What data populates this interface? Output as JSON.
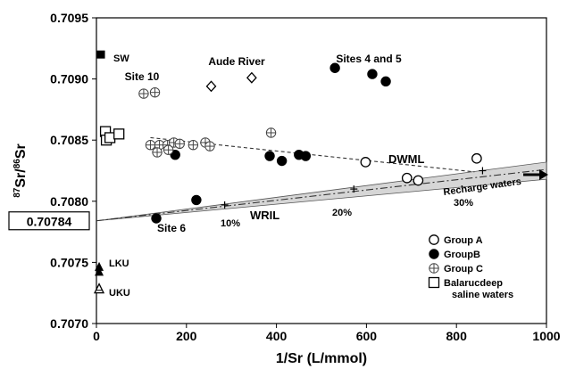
{
  "chart_data": {
    "type": "scatter",
    "xlabel": "1/Sr (L/mmol)",
    "ylabel_sup1": "87",
    "ylabel_mid": "Sr/",
    "ylabel_sup2": "86",
    "ylabel_end": "Sr",
    "xlim": [
      0,
      1000
    ],
    "ylim": [
      0.707,
      0.7095
    ],
    "xticks": [
      0,
      200,
      400,
      600,
      800,
      1000
    ],
    "xtick_labels": [
      "0",
      "200",
      "400",
      "600",
      "800",
      "1000"
    ],
    "yticks": [
      0.707,
      0.7075,
      0.708,
      0.7085,
      0.709,
      0.7095
    ],
    "ytick_labels": [
      "0.7070",
      "0.7075",
      "0.7080",
      "0.7085",
      "0.7090",
      "0.7095"
    ],
    "y_highlight": {
      "value": 0.70784,
      "label": "0.70784"
    },
    "grid": false,
    "legend_position": "bottom-right",
    "series": [
      {
        "name": "Group A",
        "marker": "open-circle",
        "points": [
          [
            598,
            0.70832
          ],
          [
            690,
            0.70819
          ],
          [
            715,
            0.70817
          ],
          [
            845,
            0.70835
          ]
        ]
      },
      {
        "name": "GroupB",
        "marker": "filled-circle",
        "points": [
          [
            175,
            0.70838
          ],
          [
            222,
            0.70801
          ],
          [
            133,
            0.70786
          ],
          [
            385,
            0.70837
          ],
          [
            412,
            0.70833
          ],
          [
            450,
            0.70838
          ],
          [
            465,
            0.70837
          ],
          [
            530,
            0.70909
          ],
          [
            613,
            0.70904
          ],
          [
            643,
            0.70898
          ]
        ]
      },
      {
        "name": "Group C",
        "marker": "crossed-circle",
        "points": [
          [
            105,
            0.70888
          ],
          [
            130,
            0.70889
          ],
          [
            120,
            0.70846
          ],
          [
            140,
            0.70846
          ],
          [
            135,
            0.7084
          ],
          [
            158,
            0.70846
          ],
          [
            160,
            0.70842
          ],
          [
            172,
            0.70848
          ],
          [
            185,
            0.70847
          ],
          [
            215,
            0.70846
          ],
          [
            242,
            0.70848
          ],
          [
            252,
            0.70845
          ],
          [
            388,
            0.70856
          ]
        ]
      },
      {
        "name": "Balarucdeep saline waters",
        "marker": "open-square",
        "points": [
          [
            20,
            0.70857
          ],
          [
            22,
            0.7085
          ],
          [
            30,
            0.70852
          ],
          [
            50,
            0.70855
          ]
        ]
      }
    ],
    "other_points": [
      {
        "label": "Aude River",
        "marker": "open-diamond",
        "points": [
          [
            255,
            0.70894
          ],
          [
            345,
            0.70901
          ]
        ]
      },
      {
        "label": "SW",
        "marker": "filled-square",
        "points": [
          [
            10,
            0.7092
          ]
        ]
      },
      {
        "label": "LKU",
        "marker": "filled-triangle",
        "points": [
          [
            6,
            0.70746
          ],
          [
            6,
            0.70742
          ]
        ]
      },
      {
        "label": "UKU",
        "marker": "open-triangle",
        "points": [
          [
            6,
            0.70728
          ]
        ]
      }
    ],
    "lines": [
      {
        "label": "DWML",
        "style": "dashed",
        "from": [
          120,
          0.70852
        ],
        "to": [
          840,
          0.70824
        ]
      },
      {
        "label": "WRIL",
        "style": "dash-dot",
        "from": [
          0,
          0.70784
        ],
        "to": [
          1000,
          0.70826
        ]
      }
    ],
    "recharge_band": {
      "label": "Recharge waters",
      "x_start": 0,
      "upper": [
        0.70784,
        0.70832
      ],
      "lower": [
        0.70784,
        0.70818
      ]
    },
    "tick_marks": [
      {
        "x": 285,
        "y": 0.70797,
        "label": "10%"
      },
      {
        "x": 572,
        "y": 0.7081,
        "label": "20%"
      },
      {
        "x": 858,
        "y": 0.70825,
        "label": "30%"
      }
    ],
    "annotations": [
      "Site 10",
      "Aude River",
      "Sites 4 and 5",
      "Site 6",
      "SW",
      "LKU",
      "UKU",
      "DWML",
      "WRIL",
      "Recharge waters",
      "10%",
      "20%",
      "30%"
    ]
  }
}
